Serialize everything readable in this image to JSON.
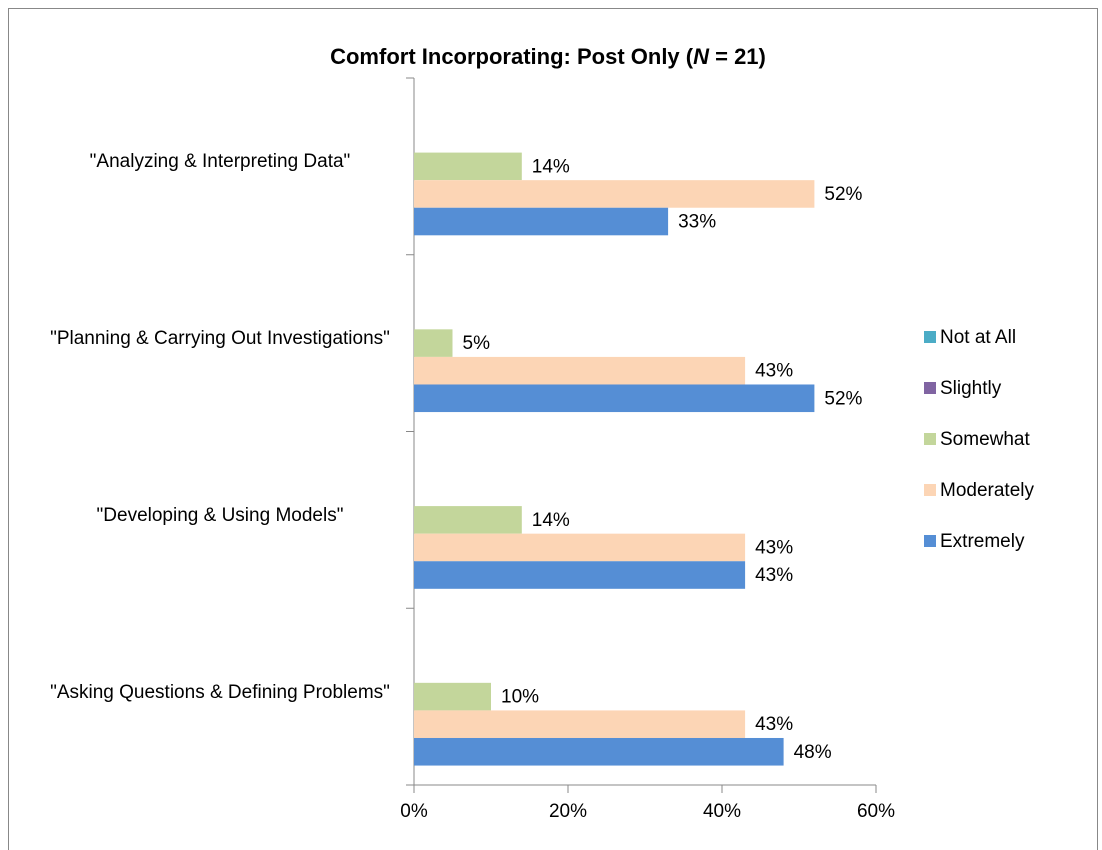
{
  "chart_data": {
    "type": "bar",
    "orientation": "horizontal",
    "title": {
      "text": "Comfort Incorporating: Post Only (",
      "italic": "N",
      "after": " = 21)"
    },
    "categories": [
      "\"Analyzing & Interpreting Data\"",
      "\"Planning & Carrying Out Investigations\"",
      "\"Developing & Using Models\"",
      "\"Asking Questions & Defining Problems\""
    ],
    "series": [
      {
        "name": "Not at All",
        "color": "#4bacc6",
        "values": [
          0,
          0,
          0,
          0
        ]
      },
      {
        "name": "Slightly",
        "color": "#8064a2",
        "values": [
          0,
          0,
          0,
          0
        ]
      },
      {
        "name": "Somewhat",
        "color": "#c3d69b",
        "values": [
          14,
          5,
          14,
          10
        ],
        "value_labels": [
          "14%",
          "5%",
          "14%",
          "10%"
        ]
      },
      {
        "name": "Moderately",
        "color": "#fcd5b5",
        "values": [
          52,
          43,
          43,
          43
        ],
        "value_labels": [
          "52%",
          "43%",
          "43%",
          "43%"
        ]
      },
      {
        "name": "Extremely",
        "color": "#558ed5",
        "values": [
          33,
          52,
          43,
          48
        ],
        "value_labels": [
          "33%",
          "52%",
          "43%",
          "48%"
        ]
      }
    ],
    "xlim": [
      0,
      60
    ],
    "xticks": [
      {
        "value": 0,
        "label": "0%"
      },
      {
        "value": 20,
        "label": "20%"
      },
      {
        "value": 40,
        "label": "40%"
      },
      {
        "value": 60,
        "label": "60%"
      }
    ],
    "grid": false,
    "legend": "right"
  }
}
